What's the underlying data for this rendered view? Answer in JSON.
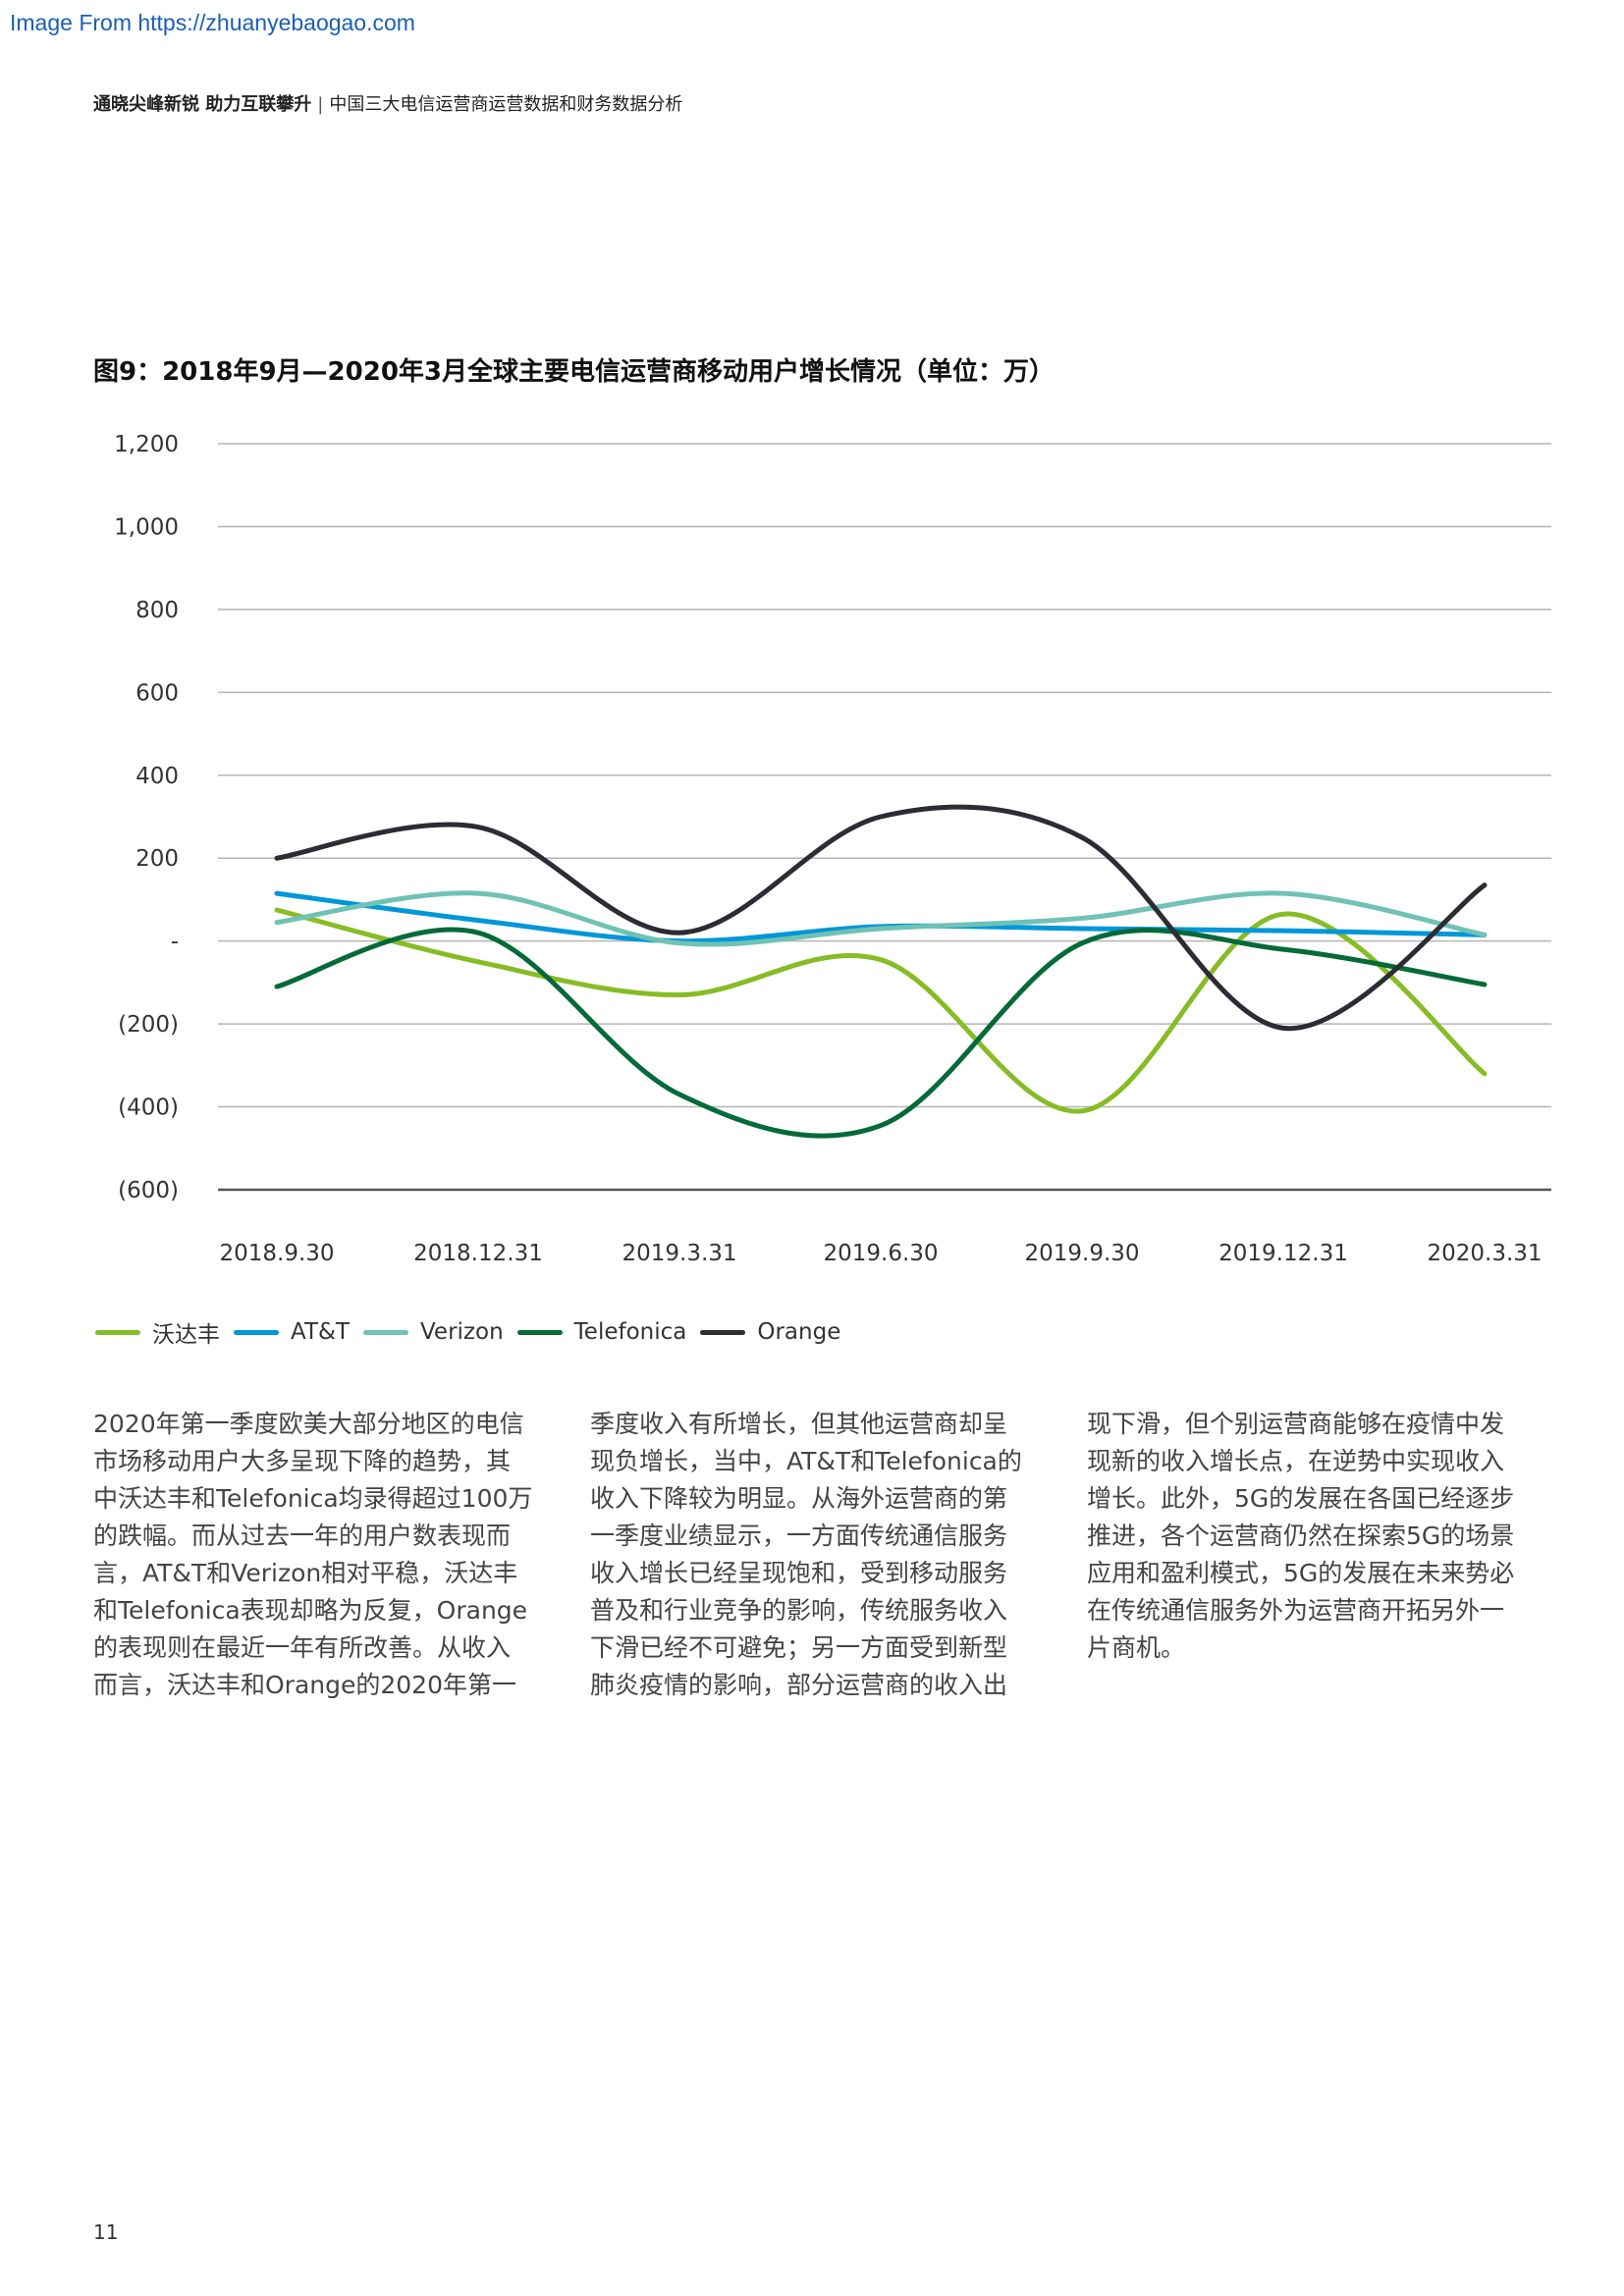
{
  "watermark": "Image From https://zhuanyebaogao.com",
  "header": {
    "bold": "通晓尖峰新锐 助力互联攀升",
    "separator": "|",
    "subtitle": "中国三大电信运营商运营数据和财务数据分析"
  },
  "chart_title": "图9：2018年9月—2020年3月全球主要电信运营商移动用户增长情况（单位：万）",
  "chart_data": {
    "type": "line",
    "title": "图9：2018年9月—2020年3月全球主要电信运营商移动用户增长情况（单位：万）",
    "xlabel": "",
    "ylabel": "",
    "ylim": [
      -600,
      1200
    ],
    "grid": true,
    "smooth": true,
    "legend_position": "bottom-left",
    "categories": [
      "2018.9.30",
      "2018.12.31",
      "2019.3.31",
      "2019.6.30",
      "2019.9.30",
      "2019.12.31",
      "2020.3.31"
    ],
    "y_ticks": [
      1200,
      1000,
      800,
      600,
      400,
      200,
      0,
      -200,
      -400,
      -600
    ],
    "y_tick_labels": [
      "1,200",
      "1,000",
      "800",
      "600",
      "400",
      "200",
      "-",
      "(200)",
      "(400)",
      "(600)"
    ],
    "series": [
      {
        "name": "沃达丰",
        "color": "#86bc25",
        "values": [
          75,
          -50,
          -130,
          -45,
          -410,
          65,
          -320
        ]
      },
      {
        "name": "AT&T",
        "color": "#0097d8",
        "values": [
          115,
          50,
          0,
          35,
          30,
          25,
          15
        ]
      },
      {
        "name": "Verizon",
        "color": "#6fc2b4",
        "values": [
          45,
          115,
          -5,
          30,
          55,
          115,
          15
        ]
      },
      {
        "name": "Telefonica",
        "color": "#046a38",
        "values": [
          -110,
          20,
          -370,
          -445,
          -5,
          -20,
          -105
        ]
      },
      {
        "name": "Orange",
        "color": "#2c2c34",
        "values": [
          200,
          275,
          20,
          300,
          250,
          -210,
          135
        ]
      }
    ]
  },
  "paragraphs": [
    [
      "2020年第一季度欧美大部分地区的电信",
      "市场移动用户大多呈现下降的趋势，其",
      "中沃达丰和Telefonica均录得超过100万",
      "的跌幅。而从过去一年的用户数表现而",
      "言，AT&T和Verizon相对平稳，沃达丰",
      "和Telefonica表现却略为反复，Orange",
      "的表现则在最近一年有所改善。从收入",
      "而言，沃达丰和Orange的2020年第一"
    ],
    [
      "季度收入有所增长，但其他运营商却呈",
      "现负增长，当中，AT&T和Telefonica的",
      "收入下降较为明显。从海外运营商的第",
      "一季度业绩显示，一方面传统通信服务",
      "收入增长已经呈现饱和，受到移动服务",
      "普及和行业竞争的影响，传统服务收入",
      "下滑已经不可避免；另一方面受到新型",
      "肺炎疫情的影响，部分运营商的收入出"
    ],
    [
      "现下滑，但个别运营商能够在疫情中发",
      "现新的收入增长点，在逆势中实现收入",
      "增长。此外，5G的发展在各国已经逐步",
      "推进，各个运营商仍然在探索5G的场景",
      "应用和盈利模式，5G的发展在未来势必",
      "在传统通信服务外为运营商开拓另外一",
      "片商机。"
    ]
  ],
  "page_number": "11"
}
